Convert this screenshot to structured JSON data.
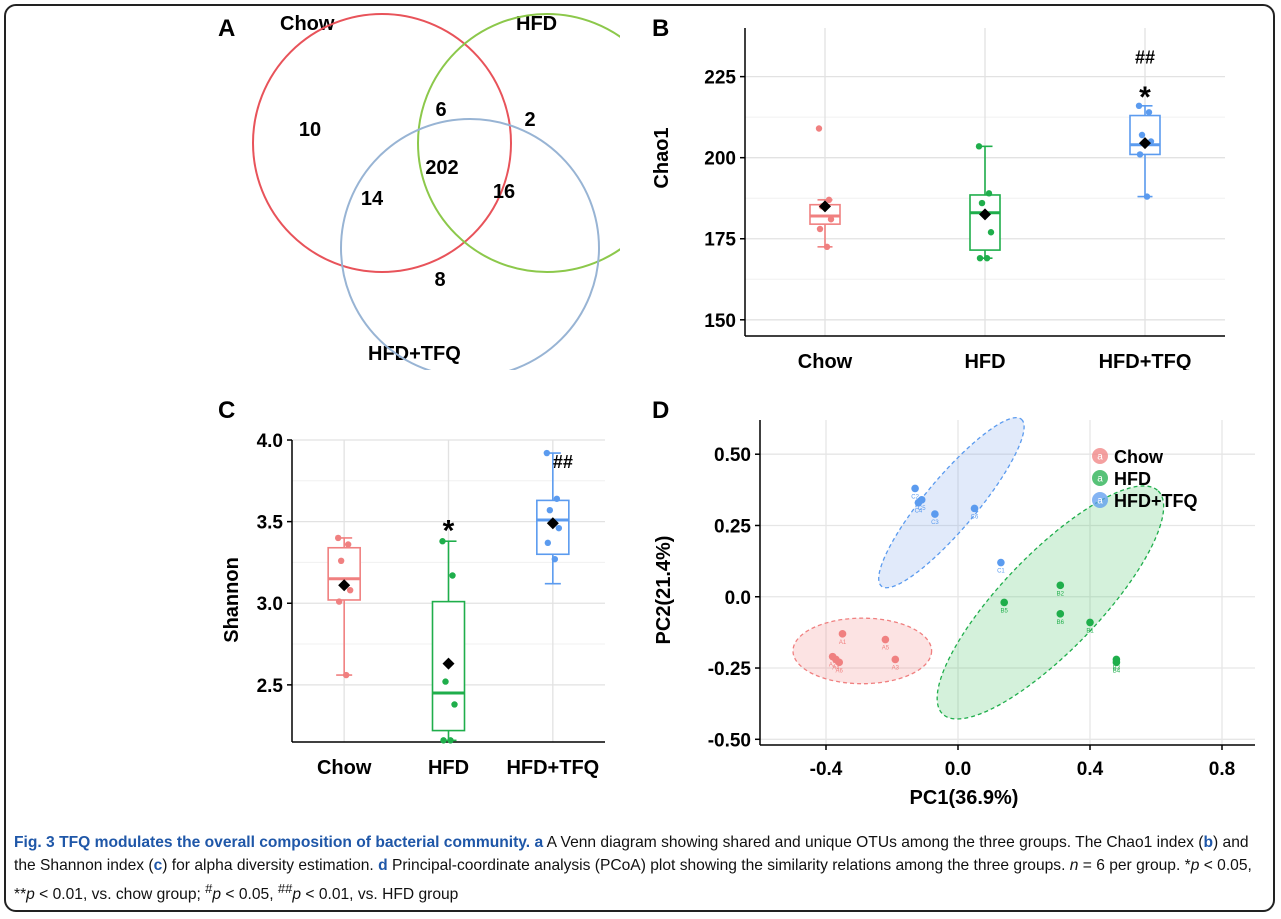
{
  "panels": {
    "A": "A",
    "B": "B",
    "C": "C",
    "D": "D"
  },
  "venn": {
    "sets": [
      {
        "name": "Chow",
        "color": "#e8535a"
      },
      {
        "name": "HFD",
        "color": "#8cc84b"
      },
      {
        "name": "HFD+TFQ",
        "color": "#98b4d4"
      }
    ],
    "regions": {
      "chow_only": "10",
      "hfd_only": "2",
      "tfq_only": "8",
      "chow_hfd": "6",
      "chow_tfq": "14",
      "hfd_tfq": "16",
      "all": "202"
    }
  },
  "chart_data": [
    {
      "type": "box",
      "panel": "B",
      "ylabel": "Chao1",
      "categories": [
        "Chow",
        "HFD",
        "HFD+TFQ"
      ],
      "ylim": [
        145,
        240
      ],
      "yticks": [
        150,
        175,
        200,
        225
      ],
      "colors": [
        "#f08080",
        "#1fae4b",
        "#5b9bef"
      ],
      "boxes": [
        {
          "min": 172.5,
          "q1": 179.5,
          "median": 182,
          "q3": 185.5,
          "max": 187,
          "mean": 185,
          "points": [
            209,
            187,
            185,
            181,
            178,
            172.5
          ]
        },
        {
          "min": 169,
          "q1": 171.5,
          "median": 183,
          "q3": 188.5,
          "max": 203.5,
          "mean": 182.5,
          "points": [
            203.5,
            189,
            186,
            177,
            169,
            169
          ]
        },
        {
          "min": 188,
          "q1": 201,
          "median": 204,
          "q3": 213,
          "max": 216,
          "mean": 204.5,
          "points": [
            216,
            214,
            207,
            205,
            201,
            188
          ]
        }
      ],
      "annotations": [
        {
          "category": "HFD+TFQ",
          "text": "##",
          "y": 229
        },
        {
          "category": "HFD+TFQ",
          "text": "*",
          "y": 220
        }
      ]
    },
    {
      "type": "box",
      "panel": "C",
      "ylabel": "Shannon",
      "categories": [
        "Chow",
        "HFD",
        "HFD+TFQ"
      ],
      "ylim": [
        2.15,
        4.0
      ],
      "yticks": [
        2.5,
        3.0,
        3.5,
        4.0
      ],
      "ytick_labels": [
        "2.5",
        "3.0",
        "3.5",
        "4.0"
      ],
      "colors": [
        "#f08080",
        "#1fae4b",
        "#5b9bef"
      ],
      "boxes": [
        {
          "min": 2.56,
          "q1": 3.02,
          "median": 3.15,
          "q3": 3.34,
          "max": 3.4,
          "mean": 3.11,
          "points": [
            3.4,
            3.36,
            3.26,
            3.08,
            3.01,
            2.56
          ]
        },
        {
          "min": 2.16,
          "q1": 2.22,
          "median": 2.45,
          "q3": 3.01,
          "max": 3.38,
          "mean": 2.63,
          "points": [
            3.38,
            3.17,
            2.52,
            2.38,
            2.16,
            2.16
          ]
        },
        {
          "min": 3.12,
          "q1": 3.3,
          "median": 3.51,
          "q3": 3.63,
          "max": 3.92,
          "mean": 3.49,
          "points": [
            3.92,
            3.64,
            3.57,
            3.46,
            3.37,
            3.27
          ]
        }
      ],
      "annotations": [
        {
          "category": "HFD",
          "text": "*",
          "y": 3.47
        },
        {
          "category": "HFD+TFQ",
          "text": "##",
          "y": 3.83
        }
      ]
    },
    {
      "type": "scatter",
      "panel": "D",
      "xlabel": "PC1(36.9%)",
      "ylabel": "PC2(21.4%)",
      "xlim": [
        -0.6,
        0.9
      ],
      "ylim": [
        -0.52,
        0.62
      ],
      "xticks": [
        -0.4,
        0.0,
        0.4,
        0.8
      ],
      "xtick_labels": [
        "-0.4",
        "0.0",
        "0.4",
        "0.8"
      ],
      "yticks": [
        -0.5,
        -0.25,
        0.0,
        0.25,
        0.5
      ],
      "ytick_labels": [
        "-0.50",
        "-0.25",
        "0.0",
        "0.25",
        "0.50"
      ],
      "legend_position": "top-right",
      "series": [
        {
          "name": "Chow",
          "color": "#f08080",
          "fill": "rgba(240,128,128,0.22)",
          "points": [
            {
              "x": -0.35,
              "y": -0.13,
              "label": "A1"
            },
            {
              "x": -0.22,
              "y": -0.15,
              "label": "A5"
            },
            {
              "x": -0.19,
              "y": -0.22,
              "label": "A3"
            },
            {
              "x": -0.38,
              "y": -0.21,
              "label": "A2"
            },
            {
              "x": -0.37,
              "y": -0.22,
              "label": "A4"
            },
            {
              "x": -0.36,
              "y": -0.23,
              "label": "A6"
            }
          ],
          "ellipse": {
            "cx": -0.29,
            "cy": -0.19,
            "rx": 0.21,
            "ry": 0.115,
            "angle": 0
          }
        },
        {
          "name": "HFD",
          "color": "#1fae4b",
          "fill": "rgba(60,190,90,0.22)",
          "points": [
            {
              "x": 0.14,
              "y": -0.02,
              "label": "B5"
            },
            {
              "x": 0.31,
              "y": 0.04,
              "label": "B2"
            },
            {
              "x": 0.31,
              "y": -0.06,
              "label": "B6"
            },
            {
              "x": 0.4,
              "y": -0.09,
              "label": "B1"
            },
            {
              "x": 0.48,
              "y": -0.22,
              "label": "B3"
            },
            {
              "x": 0.48,
              "y": -0.23,
              "label": "B4"
            }
          ],
          "ellipse": {
            "cx": 0.28,
            "cy": -0.02,
            "rx": 0.47,
            "ry": 0.17,
            "angle": -46
          }
        },
        {
          "name": "HFD+TFQ",
          "color": "#5b9bef",
          "fill": "rgba(120,160,230,0.22)",
          "points": [
            {
              "x": -0.13,
              "y": 0.38,
              "label": "C2"
            },
            {
              "x": -0.12,
              "y": 0.33,
              "label": "C4"
            },
            {
              "x": -0.07,
              "y": 0.29,
              "label": "C3"
            },
            {
              "x": 0.05,
              "y": 0.31,
              "label": "C6"
            },
            {
              "x": 0.13,
              "y": 0.12,
              "label": "C1"
            },
            {
              "x": -0.11,
              "y": 0.34,
              "label": "C5"
            }
          ],
          "ellipse": {
            "cx": -0.02,
            "cy": 0.33,
            "rx": 0.33,
            "ry": 0.09,
            "angle": -50
          }
        }
      ]
    }
  ],
  "caption": {
    "fig_label": "Fig. 3",
    "fig_title": "TFQ modulates the overall composition of bacterial community.",
    "a_letter": "a",
    "a_text": " A Venn diagram showing shared and unique OTUs among the three groups. The Chao1 index (",
    "b_letter": "b",
    "b_text": ") and the Shannon index (",
    "c_letter": "c",
    "c_text": ") for alpha diversity estimation. ",
    "d_letter": "d",
    "d_text": " Principal-coordinate analysis (PCoA) plot showing the similarity relations among the three groups. ",
    "n_text": "n",
    "n_value": " = 6 per group. *",
    "p1": "p",
    "t1": " < 0.05, **",
    "p2": "p",
    "t2": " < 0.01, vs. chow group; ",
    "h1": "#",
    "p3": "p",
    "t3": " < 0.05, ",
    "h2": "##",
    "p4": "p",
    "t4": " < 0.01, vs. HFD group"
  }
}
